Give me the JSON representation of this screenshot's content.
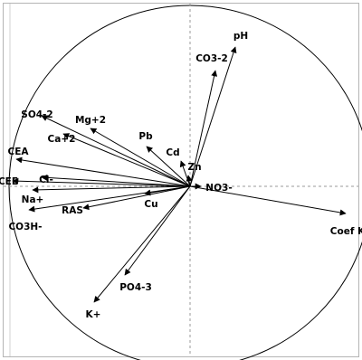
{
  "chart_data": {
    "type": "scatter",
    "title": "",
    "xlabel": "",
    "ylabel": "",
    "xlim": [
      -1,
      1
    ],
    "ylim": [
      -1,
      1
    ],
    "grid": false,
    "reference_lines": "dashed x=0 and y=0",
    "circle": "unit circle",
    "arrow_color": "#000000",
    "vectors": [
      {
        "label": "pH",
        "x": 0.25,
        "y": 0.77
      },
      {
        "label": "CO3-2",
        "x": 0.14,
        "y": 0.64
      },
      {
        "label": "SO4-2",
        "x": -0.82,
        "y": 0.39
      },
      {
        "label": "Mg+2",
        "x": -0.55,
        "y": 0.32
      },
      {
        "label": "Pb",
        "x": -0.24,
        "y": 0.22
      },
      {
        "label": "Cd",
        "x": -0.05,
        "y": 0.14
      },
      {
        "label": "Ca+2",
        "x": -0.7,
        "y": 0.29
      },
      {
        "label": "CEA",
        "x": -0.96,
        "y": 0.15
      },
      {
        "label": "Zn",
        "x": -0.01,
        "y": 0.06
      },
      {
        "label": "Cl-",
        "x": -0.82,
        "y": 0.05
      },
      {
        "label": "CEE",
        "x": -0.98,
        "y": 0.03
      },
      {
        "label": "NO3-",
        "x": 0.06,
        "y": 0.0
      },
      {
        "label": "Na+",
        "x": -0.87,
        "y": -0.02
      },
      {
        "label": "Cu",
        "x": -0.25,
        "y": -0.04
      },
      {
        "label": "RAS",
        "x": -0.59,
        "y": -0.12
      },
      {
        "label": "CO3H-",
        "x": -0.89,
        "y": -0.13
      },
      {
        "label": "Coef K",
        "x": 0.86,
        "y": -0.15
      },
      {
        "label": "PO4-3",
        "x": -0.36,
        "y": -0.49
      },
      {
        "label": "K+",
        "x": -0.53,
        "y": -0.64
      }
    ]
  }
}
